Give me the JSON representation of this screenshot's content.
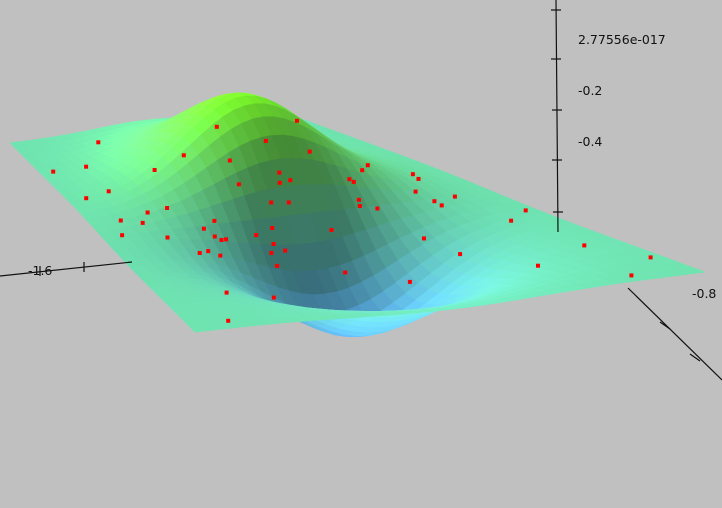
{
  "chart_data": {
    "type": "surface",
    "title": "",
    "z_tick_labels": [
      "2.77556e-017",
      "-0.2",
      "-0.4"
    ],
    "x_tick_labels": [
      "-0.8"
    ],
    "y_tick_labels": [
      "-1.6"
    ],
    "surface": {
      "formula": "z = x * exp(-(x^2 + y^2))",
      "x_range": [
        -2,
        2
      ],
      "y_range": [
        -2,
        2
      ],
      "z_range": [
        -0.43,
        0.43
      ],
      "grid": false
    },
    "colors": {
      "background": "#c0c0c0",
      "peak": "#7cfc2a",
      "flat": "#6fe3b0",
      "valley": "#5aaaf0",
      "underside": "#3a6fa0",
      "markers": "#ff0000",
      "axes": "#111111"
    },
    "scatter_points": [
      [
        -1.9,
        -1.7,
        0.01
      ],
      [
        -1.6,
        -1.2,
        0.02
      ],
      [
        -1.4,
        -0.5,
        0.05
      ],
      [
        -1.2,
        0.3,
        0.12
      ],
      [
        -1.7,
        0.9,
        0.05
      ],
      [
        -1.3,
        1.6,
        0.02
      ],
      [
        -0.9,
        -1.5,
        0.1
      ],
      [
        -0.8,
        -0.8,
        0.28
      ],
      [
        -0.7,
        0.1,
        0.36
      ],
      [
        -0.6,
        0.7,
        0.26
      ],
      [
        -0.9,
        1.3,
        0.08
      ],
      [
        -0.4,
        -1.1,
        0.12
      ],
      [
        -0.3,
        -0.3,
        0.25
      ],
      [
        -0.2,
        0.4,
        0.18
      ],
      [
        -0.5,
        1.8,
        0.02
      ],
      [
        0.0,
        -1.8,
        0.0
      ],
      [
        0.1,
        -0.9,
        -0.04
      ],
      [
        0.2,
        -0.1,
        -0.18
      ],
      [
        0.1,
        0.9,
        -0.04
      ],
      [
        0.3,
        1.5,
        -0.03
      ],
      [
        0.5,
        -1.3,
        -0.08
      ],
      [
        0.6,
        -0.5,
        -0.28
      ],
      [
        0.7,
        0.3,
        -0.35
      ],
      [
        0.5,
        1.1,
        -0.12
      ],
      [
        0.9,
        -1.7,
        -0.03
      ],
      [
        1.0,
        -0.9,
        -0.16
      ],
      [
        1.1,
        0.0,
        -0.34
      ],
      [
        1.0,
        0.8,
        -0.19
      ],
      [
        1.3,
        1.4,
        -0.03
      ],
      [
        1.5,
        -1.3,
        -0.03
      ],
      [
        1.6,
        -0.3,
        -0.11
      ],
      [
        1.5,
        0.6,
        -0.08
      ],
      [
        1.8,
        1.9,
        -0.0
      ],
      [
        1.9,
        -0.8,
        -0.02
      ],
      [
        1.7,
        0.2,
        -0.08
      ],
      [
        -1.8,
        -0.2,
        0.07
      ],
      [
        -1.5,
        0.4,
        0.1
      ],
      [
        -1.1,
        -0.2,
        0.32
      ],
      [
        -1.0,
        0.6,
        0.22
      ],
      [
        -0.6,
        -0.6,
        0.32
      ],
      [
        -0.1,
        -0.5,
        -0.05
      ],
      [
        0.3,
        0.6,
        -0.17
      ],
      [
        0.8,
        -0.2,
        -0.36
      ],
      [
        1.2,
        -0.5,
        -0.2
      ],
      [
        1.3,
        0.5,
        -0.15
      ],
      [
        0.4,
        -1.6,
        -0.03
      ],
      [
        -0.2,
        1.2,
        0.04
      ],
      [
        0.8,
        1.3,
        -0.06
      ],
      [
        1.9,
        0.9,
        -0.01
      ],
      [
        -1.9,
        1.5,
        0.0
      ],
      [
        -1.4,
        -1.5,
        0.02
      ],
      [
        -0.7,
        -1.2,
        0.1
      ],
      [
        0.6,
        1.8,
        -0.02
      ],
      [
        1.6,
        1.2,
        -0.03
      ],
      [
        0.9,
        0.5,
        -0.28
      ],
      [
        1.1,
        -1.3,
        -0.06
      ],
      [
        -0.3,
        -1.5,
        0.04
      ],
      [
        0.0,
        1.6,
        0.0
      ],
      [
        -1.6,
        1.9,
        0.0
      ],
      [
        1.4,
        -1.8,
        -0.01
      ],
      [
        0.2,
        -0.6,
        -0.13
      ],
      [
        0.4,
        0.1,
        -0.34
      ],
      [
        1.2,
        0.9,
        -0.09
      ],
      [
        -1.2,
        -0.9,
        0.14
      ],
      [
        -0.5,
        0.3,
        0.33
      ]
    ]
  }
}
